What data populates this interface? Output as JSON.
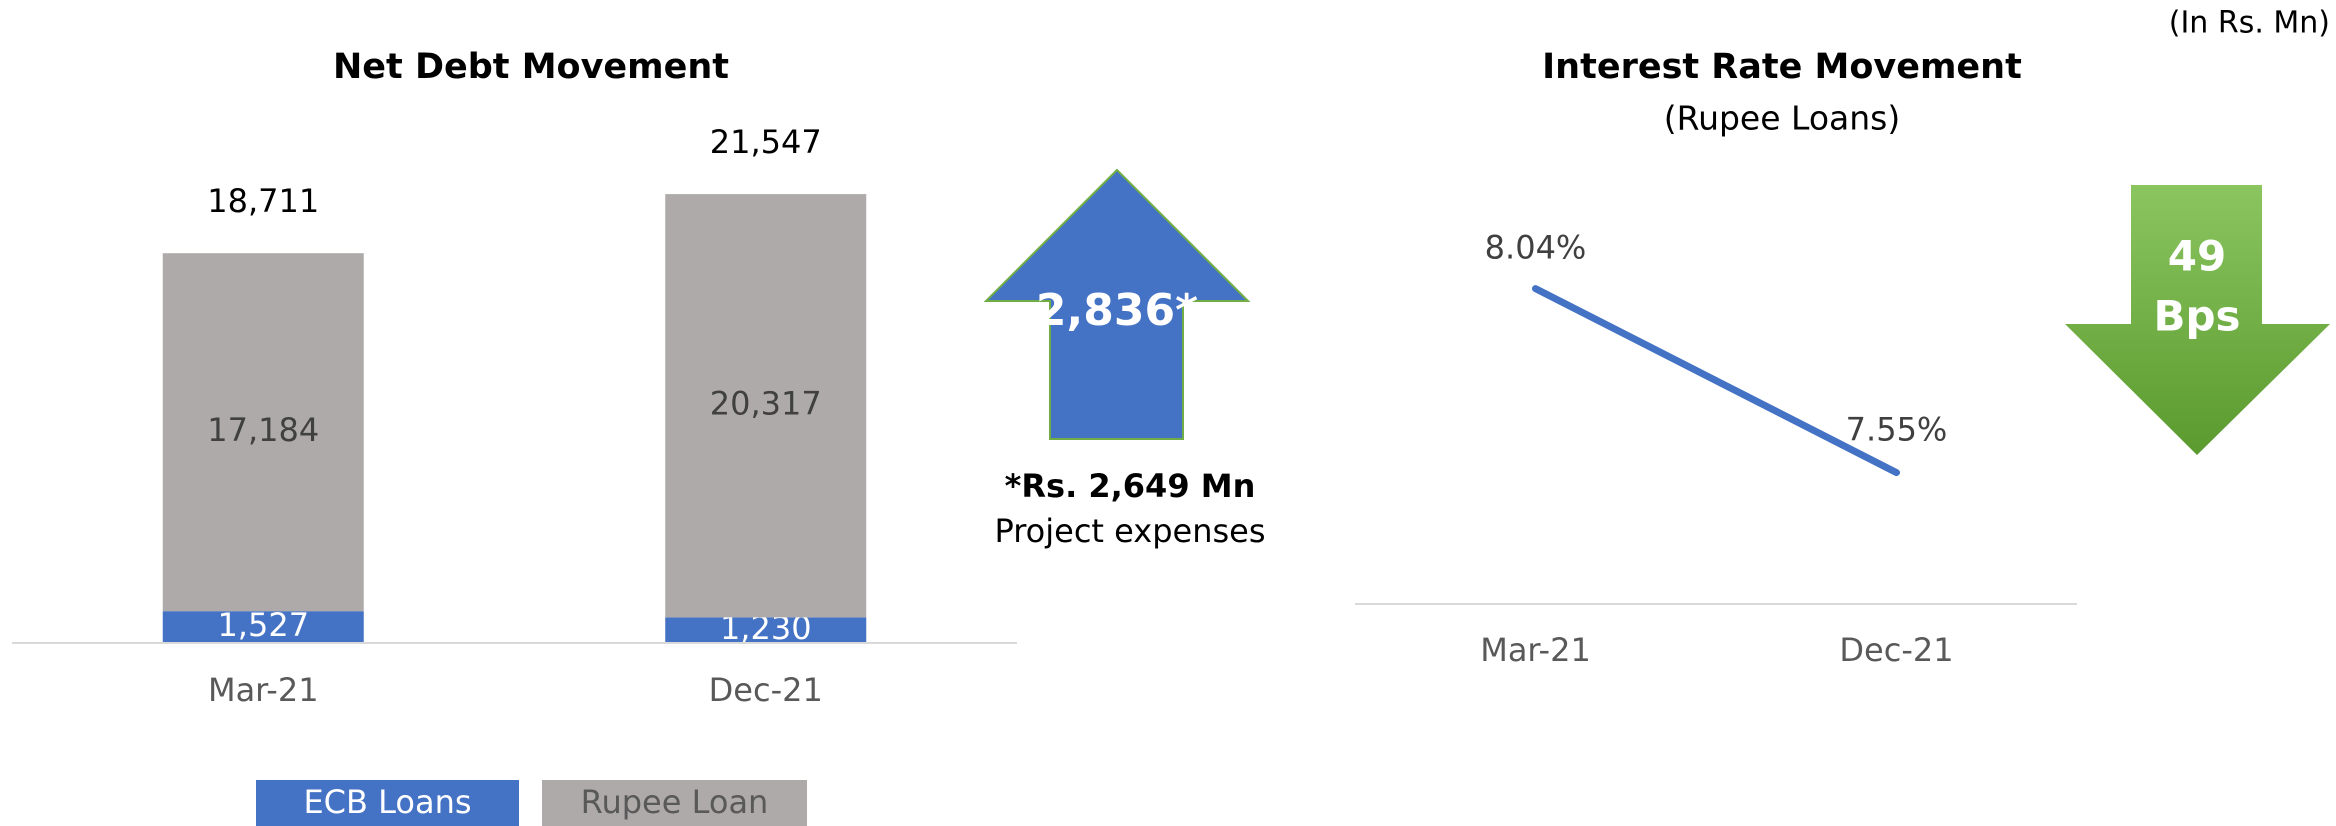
{
  "unit_note": "(In Rs. Mn)",
  "chart_data": [
    {
      "type": "stacked_bar",
      "title": "Net Debt Movement",
      "categories": [
        "Mar-21",
        "Dec-21"
      ],
      "series": [
        {
          "name": "ECB Loans",
          "color": "#4472c4",
          "values": [
            1527,
            1230
          ],
          "value_labels": [
            "1,527",
            "1,230"
          ]
        },
        {
          "name": "Rupee Loan",
          "color": "#aeaaaa",
          "values": [
            17184,
            20317
          ],
          "value_labels": [
            "17,184",
            "20,317"
          ]
        }
      ],
      "totals": [
        18711,
        21547
      ],
      "total_labels": [
        "18,711",
        "21,547"
      ],
      "ylim": [
        0,
        24000
      ],
      "change_label": "2,836*",
      "footnote": [
        "*Rs. 2,649 Mn",
        "Project expenses"
      ]
    },
    {
      "type": "line",
      "title": "Interest Rate Movement",
      "subtitle": "(Rupee Loans)",
      "categories": [
        "Mar-21",
        "Dec-21"
      ],
      "series": [
        {
          "color": "#4472c4",
          "values": [
            8.04,
            7.55
          ],
          "value_labels": [
            "8.04%",
            "7.55%"
          ]
        }
      ],
      "ylim": [
        7.2,
        8.3
      ],
      "change_label": [
        "49",
        "Bps"
      ]
    }
  ]
}
